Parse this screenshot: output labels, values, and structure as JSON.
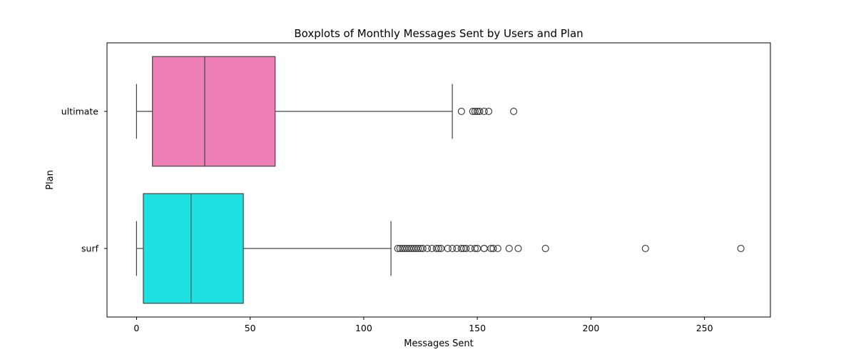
{
  "chart_data": {
    "type": "boxplot",
    "orientation": "horizontal",
    "title": "Boxplots of Monthly Messages Sent by Users and Plan",
    "xlabel": "Messages Sent",
    "ylabel": "Plan",
    "xlim": [
      -13,
      279
    ],
    "xticks": [
      0,
      50,
      100,
      150,
      200,
      250
    ],
    "grid": false,
    "categories": [
      "ultimate",
      "surf"
    ],
    "series": [
      {
        "category": "ultimate",
        "color": "#ef7fb7",
        "whisker_low": 0,
        "q1": 7,
        "median": 30,
        "q3": 61,
        "whisker_high": 139,
        "outliers": [
          143,
          148,
          149,
          150,
          150,
          151,
          153,
          155,
          166
        ]
      },
      {
        "category": "surf",
        "color": "#20e1e1",
        "whisker_low": 0,
        "q1": 3,
        "median": 24,
        "q3": 47,
        "whisker_high": 112,
        "outliers": [
          115,
          116,
          117,
          118,
          119,
          120,
          121,
          122,
          123,
          124,
          125,
          126,
          128,
          130,
          132,
          133,
          134,
          137,
          139,
          141,
          143,
          144,
          145,
          147,
          149,
          150,
          153,
          153,
          156,
          157,
          159,
          164,
          168,
          180,
          224,
          266
        ]
      }
    ]
  }
}
